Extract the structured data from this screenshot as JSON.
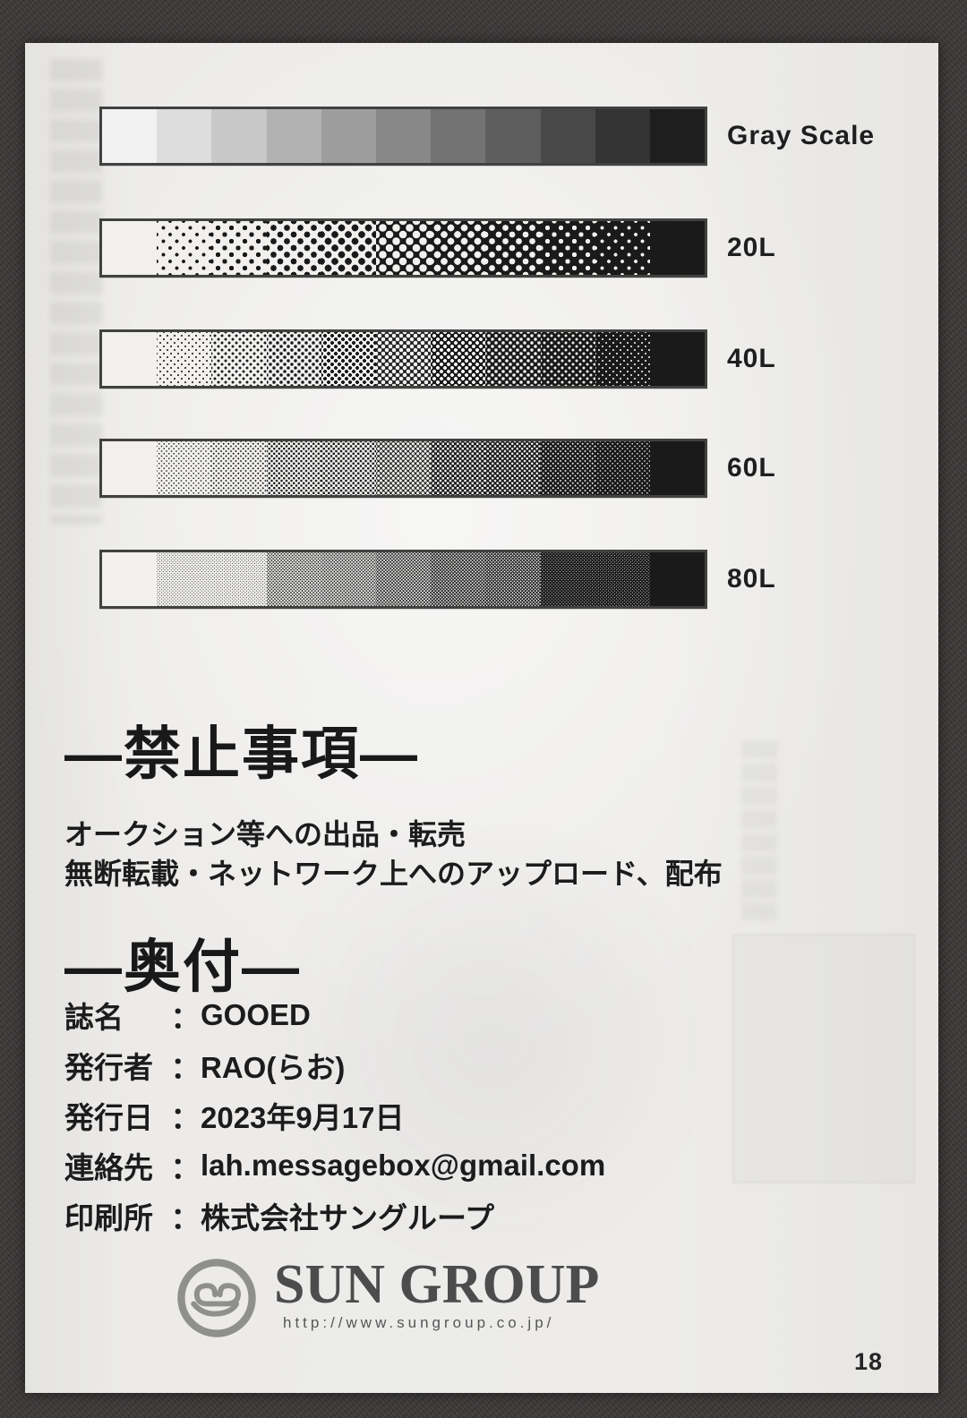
{
  "calibration": {
    "levels": [
      0,
      0.1,
      0.2,
      0.3,
      0.4,
      0.5,
      0.6,
      0.7,
      0.8,
      0.9,
      1.0
    ],
    "bars": [
      {
        "label": "Gray Scale",
        "type": "steps",
        "dot_cell": 0
      },
      {
        "label": "20L",
        "type": "halftone",
        "dot_cell": 15
      },
      {
        "label": "40L",
        "type": "halftone",
        "dot_cell": 8
      },
      {
        "label": "60L",
        "type": "halftone",
        "dot_cell": 5.5
      },
      {
        "label": "80L",
        "type": "halftone",
        "dot_cell": 3.6
      }
    ]
  },
  "prohibition": {
    "heading": "―禁止事項―",
    "lines": [
      "オークション等への出品・転売",
      "無断転載・ネットワーク上へのアップロード、配布"
    ]
  },
  "colophon": {
    "heading": "―奥付―",
    "separator": "：",
    "rows": [
      {
        "label": "誌名",
        "value": "GOOED"
      },
      {
        "label": "発行者",
        "value": "RAO(らお)"
      },
      {
        "label": "発行日",
        "value": "2023年9月17日"
      },
      {
        "label": "連絡先",
        "value": "lah.messagebox@gmail.com"
      },
      {
        "label": "印刷所",
        "value": "株式会社サングループ"
      }
    ]
  },
  "printer_logo": {
    "name": "SUN GROUP",
    "url": "http://www.sungroup.co.jp/"
  },
  "page_number": "18",
  "colors": {
    "paper": "#ebeae8",
    "ink": "#1c1c1c",
    "frame": "#3c3a39",
    "logo_gray": "#8f8f8d"
  }
}
